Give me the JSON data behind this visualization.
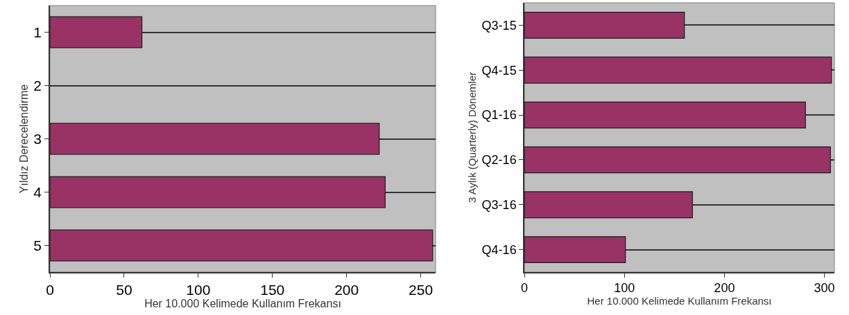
{
  "chart_data": [
    {
      "type": "bar",
      "orientation": "horizontal",
      "categories": [
        "1",
        "2",
        "3",
        "4",
        "5"
      ],
      "values": [
        62,
        null,
        222,
        226,
        258
      ],
      "color": "#993366",
      "xlim": [
        0,
        260
      ],
      "xticks": [
        0,
        50,
        100,
        150,
        200,
        250
      ],
      "xlabel": "Her 10.000 Kelimede Kullanım Frekansı",
      "ylabel": "Yıldız Derecelendirme",
      "grid": "y"
    },
    {
      "type": "bar",
      "orientation": "horizontal",
      "categories": [
        "Q3-15",
        "Q4-15",
        "Q1-16",
        "Q2-16",
        "Q3-16",
        "Q4-16"
      ],
      "values": [
        160,
        307,
        281,
        306,
        168,
        101
      ],
      "color": "#993366",
      "xlim": [
        0,
        310
      ],
      "xticks": [
        0,
        100,
        200,
        300
      ],
      "xlabel": "Her 10.000 Kelimede Kullanım Frekansı",
      "ylabel": "3 Aylık (Quarterly) Dönemler",
      "grid": "y"
    }
  ]
}
